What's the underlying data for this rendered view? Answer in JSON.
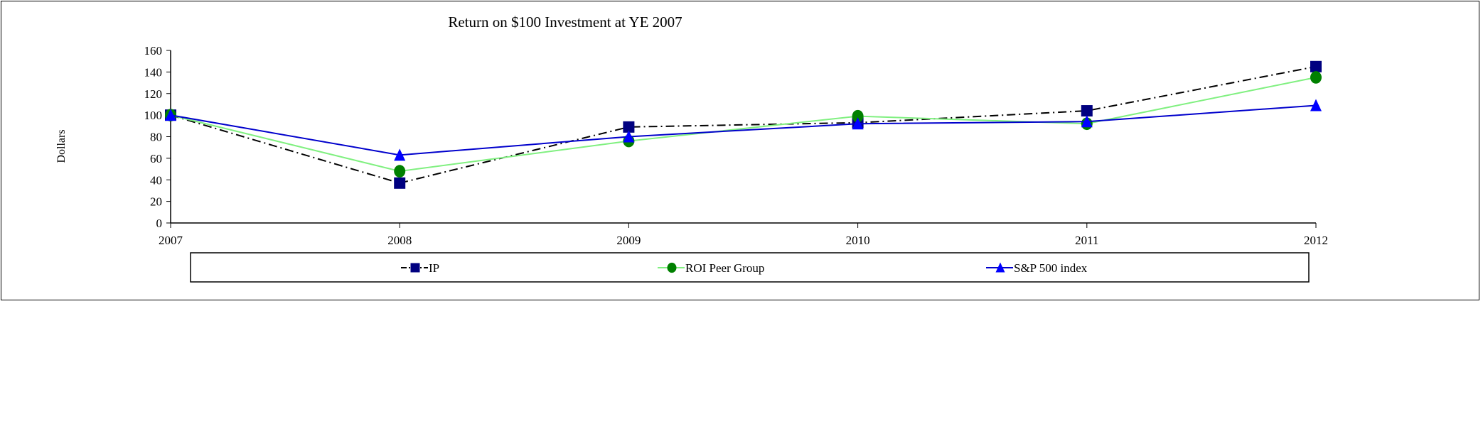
{
  "chart_data": {
    "type": "line",
    "title": "Return on $100 Investment at YE 2007",
    "xlabel": "",
    "ylabel": "Dollars",
    "categories": [
      "2007",
      "2008",
      "2009",
      "2010",
      "2011",
      "2012"
    ],
    "ylim": [
      0,
      160
    ],
    "yticks": [
      0,
      20,
      40,
      60,
      80,
      100,
      120,
      140,
      160
    ],
    "grid": false,
    "legend_position": "bottom",
    "series": [
      {
        "name": "IP",
        "values": [
          100,
          37,
          89,
          93,
          104,
          145
        ],
        "line_color": "#000000",
        "marker_color": "#000080",
        "marker": "square",
        "dash": "dash-dot"
      },
      {
        "name": "ROI Peer Group",
        "values": [
          100,
          48,
          76,
          99,
          92,
          135
        ],
        "line_color": "#80F080",
        "marker_color": "#008000",
        "marker": "circle",
        "dash": "solid"
      },
      {
        "name": "S&P 500 index",
        "values": [
          100,
          63,
          80,
          92,
          94,
          109
        ],
        "line_color": "#0000CC",
        "marker_color": "#0000FF",
        "marker": "triangle",
        "dash": "solid"
      }
    ]
  }
}
